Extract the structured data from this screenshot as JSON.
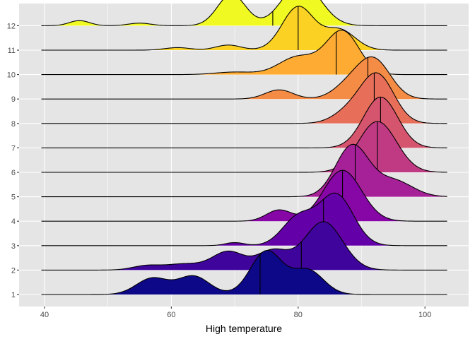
{
  "chart_data": {
    "type": "area",
    "subtype": "ridgeline density with median lines",
    "xlabel": "High temperature",
    "ylabel": "",
    "title": "",
    "xlim": [
      38,
      106
    ],
    "x_ticks": [
      40,
      60,
      80,
      100
    ],
    "grid": true,
    "legend": "none",
    "colors": {
      "panel": "#e5e5e5",
      "grid": "#ffffff",
      "outline": "#000000"
    },
    "categories": [
      "1",
      "2",
      "3",
      "4",
      "5",
      "6",
      "7",
      "8",
      "9",
      "10",
      "11",
      "12"
    ],
    "series": [
      {
        "category": "1",
        "median": 74,
        "fill": "#0d0887",
        "range": [
          39.5,
          103.5
        ],
        "components": [
          [
            57,
            2.5,
            0.32
          ],
          [
            63.5,
            2.5,
            0.36
          ],
          [
            75,
            2.5,
            0.85
          ],
          [
            81.5,
            2.5,
            0.48
          ]
        ]
      },
      {
        "category": "2",
        "median": 80.5,
        "fill": "#3e049c",
        "range": [
          39.5,
          103.5
        ],
        "components": [
          [
            56,
            2.2,
            0.08
          ],
          [
            62,
            3.0,
            0.12
          ],
          [
            69,
            2.5,
            0.36
          ],
          [
            76,
            2.5,
            0.38
          ],
          [
            84,
            3.0,
            0.95
          ]
        ]
      },
      {
        "category": "3",
        "median": 84,
        "fill": "#6300a7",
        "range": [
          39.5,
          103.5
        ],
        "components": [
          [
            70,
            1.5,
            0.06
          ],
          [
            80,
            2.5,
            0.55
          ],
          [
            86,
            2.7,
            1.0
          ]
        ]
      },
      {
        "category": "4",
        "median": 87,
        "fill": "#8606a6",
        "range": [
          39.5,
          103.5
        ],
        "components": [
          [
            77,
            2.0,
            0.22
          ],
          [
            87,
            3.0,
            1.0
          ]
        ]
      },
      {
        "category": "5",
        "median": 89,
        "fill": "#a62098",
        "range": [
          39.5,
          103.5
        ],
        "components": [
          [
            88.5,
            2.6,
            1.0
          ],
          [
            95,
            3.0,
            0.32
          ]
        ]
      },
      {
        "category": "6",
        "median": 92.5,
        "fill": "#c03a83",
        "range": [
          39.5,
          103.5
        ],
        "components": [
          [
            92.5,
            3.0,
            1.0
          ]
        ]
      },
      {
        "category": "7",
        "median": 93,
        "fill": "#d5546e",
        "range": [
          39.5,
          103.5
        ],
        "components": [
          [
            93,
            2.7,
            1.0
          ]
        ]
      },
      {
        "category": "8",
        "median": 92,
        "fill": "#e76f5a",
        "range": [
          39.5,
          103.5
        ],
        "components": [
          [
            92.5,
            2.6,
            0.95
          ],
          [
            88,
            2.5,
            0.22
          ]
        ]
      },
      {
        "category": "9",
        "median": 91,
        "fill": "#f58c46",
        "range": [
          39.5,
          103.5
        ],
        "components": [
          [
            77,
            2.2,
            0.18
          ],
          [
            92,
            2.6,
            0.75
          ],
          [
            88,
            2.5,
            0.25
          ]
        ]
      },
      {
        "category": "10",
        "median": 86,
        "fill": "#fdab33",
        "range": [
          39.5,
          103.5
        ],
        "components": [
          [
            70,
            3.0,
            0.05
          ],
          [
            80,
            3.0,
            0.35
          ],
          [
            87,
            2.6,
            0.85
          ]
        ]
      },
      {
        "category": "11",
        "median": 80,
        "fill": "#fbd224",
        "range": [
          39.5,
          103.5
        ],
        "components": [
          [
            61,
            2.0,
            0.05
          ],
          [
            69,
            2.0,
            0.1
          ],
          [
            80,
            2.5,
            0.85
          ],
          [
            86.5,
            2.5,
            0.4
          ]
        ]
      },
      {
        "category": "12",
        "median": 76,
        "fill": "#f0f921",
        "range": [
          39.5,
          103.5
        ],
        "components": [
          [
            45.5,
            1.6,
            0.1
          ],
          [
            55,
            1.8,
            0.05
          ],
          [
            69.5,
            2.2,
            0.62
          ],
          [
            80.5,
            3.0,
            0.85
          ]
        ]
      }
    ]
  }
}
